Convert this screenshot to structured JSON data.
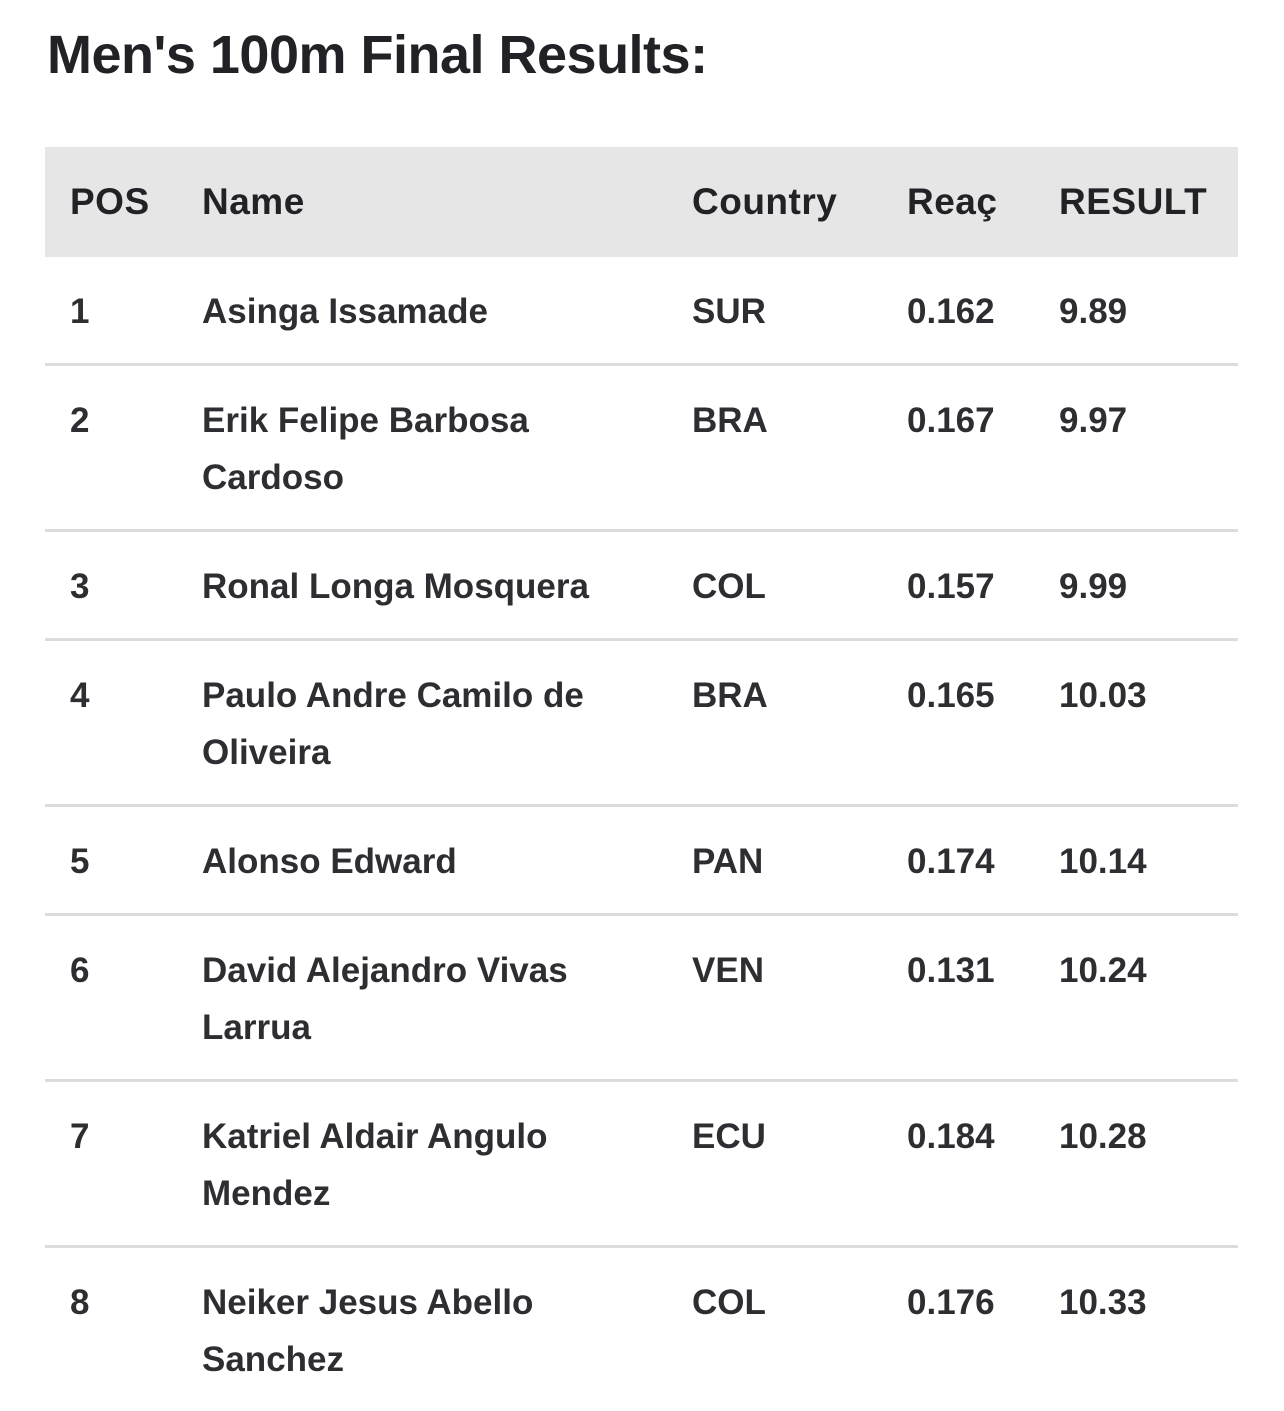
{
  "title": "Men's 100m Final Results:",
  "table": {
    "header": [
      "POS",
      "Name",
      "Country",
      "Reaç",
      "RESULT"
    ],
    "rows": [
      [
        "1",
        "Asinga Issamade",
        "SUR",
        "0.162",
        "9.89"
      ],
      [
        "2",
        "Erik Felipe Barbosa Cardoso",
        "BRA",
        "0.167",
        "9.97"
      ],
      [
        "3",
        "Ronal Longa Mosquera",
        "COL",
        "0.157",
        "9.99"
      ],
      [
        "4",
        "Paulo Andre Camilo de Oliveira",
        "BRA",
        "0.165",
        "10.03"
      ],
      [
        "5",
        "Alonso Edward",
        "PAN",
        "0.174",
        "10.14"
      ],
      [
        "6",
        "David Alejandro Vivas Larrua",
        "VEN",
        "0.131",
        "10.24"
      ],
      [
        "7",
        "Katriel Aldair Angulo Mendez",
        "ECU",
        "0.184",
        "10.28"
      ],
      [
        "8",
        "Neiker Jesus Abello Sanchez",
        "COL",
        "0.176",
        "10.33"
      ]
    ]
  }
}
